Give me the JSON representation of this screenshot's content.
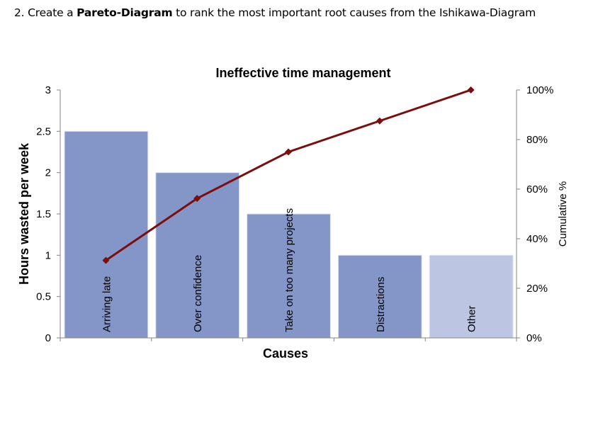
{
  "page": {
    "heading_prefix": "2. Create a ",
    "heading_bold": "Pareto-Diagram",
    "heading_suffix": " to rank the most important root causes from the Ishikawa-Diagram"
  },
  "colors": {
    "bar": "#8496c8",
    "bar_other": "#bcc5e2",
    "line": "#7b0d0d",
    "axis": "#868686"
  },
  "chart_data": {
    "type": "bar",
    "title": "Ineffective time management",
    "xlabel": "Causes",
    "ylabel": "Hours wasted per week",
    "y2label": "Cumulative %",
    "categories": [
      "Arriving late",
      "Over confidence",
      "Take on too many projects",
      "Distractions",
      "Other"
    ],
    "series": [
      {
        "name": "Hours wasted per week",
        "type": "bar",
        "axis": "left",
        "values": [
          2.5,
          2,
          1.5,
          1,
          1
        ]
      },
      {
        "name": "Cumulative %",
        "type": "line",
        "axis": "right",
        "values": [
          31.25,
          56.25,
          75,
          87.5,
          100
        ]
      }
    ],
    "ylim": [
      0,
      3
    ],
    "y_ticks": [
      "0",
      "0.5",
      "1",
      "1.5",
      "2",
      "2.5",
      "3"
    ],
    "y2lim": [
      0,
      100
    ],
    "y2_ticks": [
      "0%",
      "20%",
      "40%",
      "60%",
      "80%",
      "100%"
    ],
    "grid": false,
    "legend": "none"
  }
}
